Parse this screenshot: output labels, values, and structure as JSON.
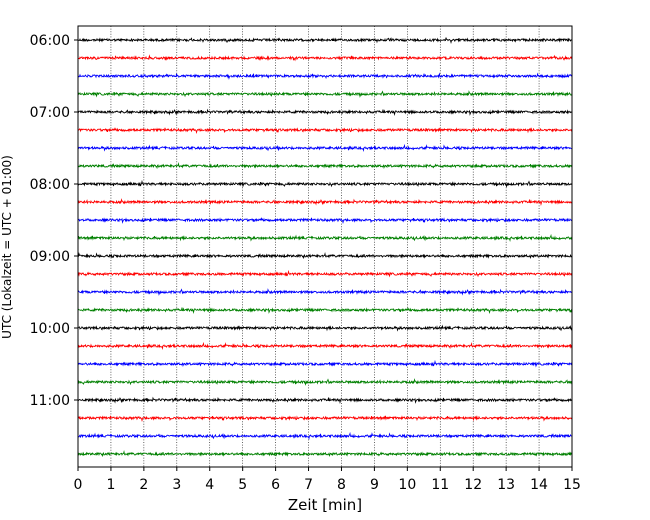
{
  "chart_data": {
    "type": "line",
    "title": "",
    "xlabel": "Zeit  [min]",
    "ylabel": "UTC (Lokalzeit = UTC + 01:00)",
    "xlim": [
      0,
      15
    ],
    "x_ticks": [
      "0",
      "1",
      "2",
      "3",
      "4",
      "5",
      "6",
      "7",
      "8",
      "9",
      "10",
      "11",
      "12",
      "13",
      "14",
      "15"
    ],
    "ylim": [
      "06:00",
      "11:45"
    ],
    "y_ticks": [
      "06:00",
      "07:00",
      "08:00",
      "09:00",
      "10:00",
      "11:00"
    ],
    "y_axis_inverted": true,
    "grid": "vertical dotted lines at each minute",
    "trace_interval_minutes": 15,
    "trace_color_cycle": [
      "#000000",
      "#ff0000",
      "#0000ff",
      "#008000"
    ],
    "traces": [
      {
        "start": "06:00",
        "color": "#000000"
      },
      {
        "start": "06:15",
        "color": "#ff0000"
      },
      {
        "start": "06:30",
        "color": "#0000ff"
      },
      {
        "start": "06:45",
        "color": "#008000"
      },
      {
        "start": "07:00",
        "color": "#000000"
      },
      {
        "start": "07:15",
        "color": "#ff0000"
      },
      {
        "start": "07:30",
        "color": "#0000ff"
      },
      {
        "start": "07:45",
        "color": "#008000"
      },
      {
        "start": "08:00",
        "color": "#000000"
      },
      {
        "start": "08:15",
        "color": "#ff0000"
      },
      {
        "start": "08:30",
        "color": "#0000ff"
      },
      {
        "start": "08:45",
        "color": "#008000"
      },
      {
        "start": "09:00",
        "color": "#000000"
      },
      {
        "start": "09:15",
        "color": "#ff0000"
      },
      {
        "start": "09:30",
        "color": "#0000ff"
      },
      {
        "start": "09:45",
        "color": "#008000"
      },
      {
        "start": "10:00",
        "color": "#000000"
      },
      {
        "start": "10:15",
        "color": "#ff0000"
      },
      {
        "start": "10:30",
        "color": "#0000ff"
      },
      {
        "start": "10:45",
        "color": "#008000"
      },
      {
        "start": "11:00",
        "color": "#000000"
      },
      {
        "start": "11:15",
        "color": "#ff0000"
      },
      {
        "start": "11:30",
        "color": "#0000ff"
      },
      {
        "start": "11:45",
        "color": "#008000"
      }
    ]
  }
}
